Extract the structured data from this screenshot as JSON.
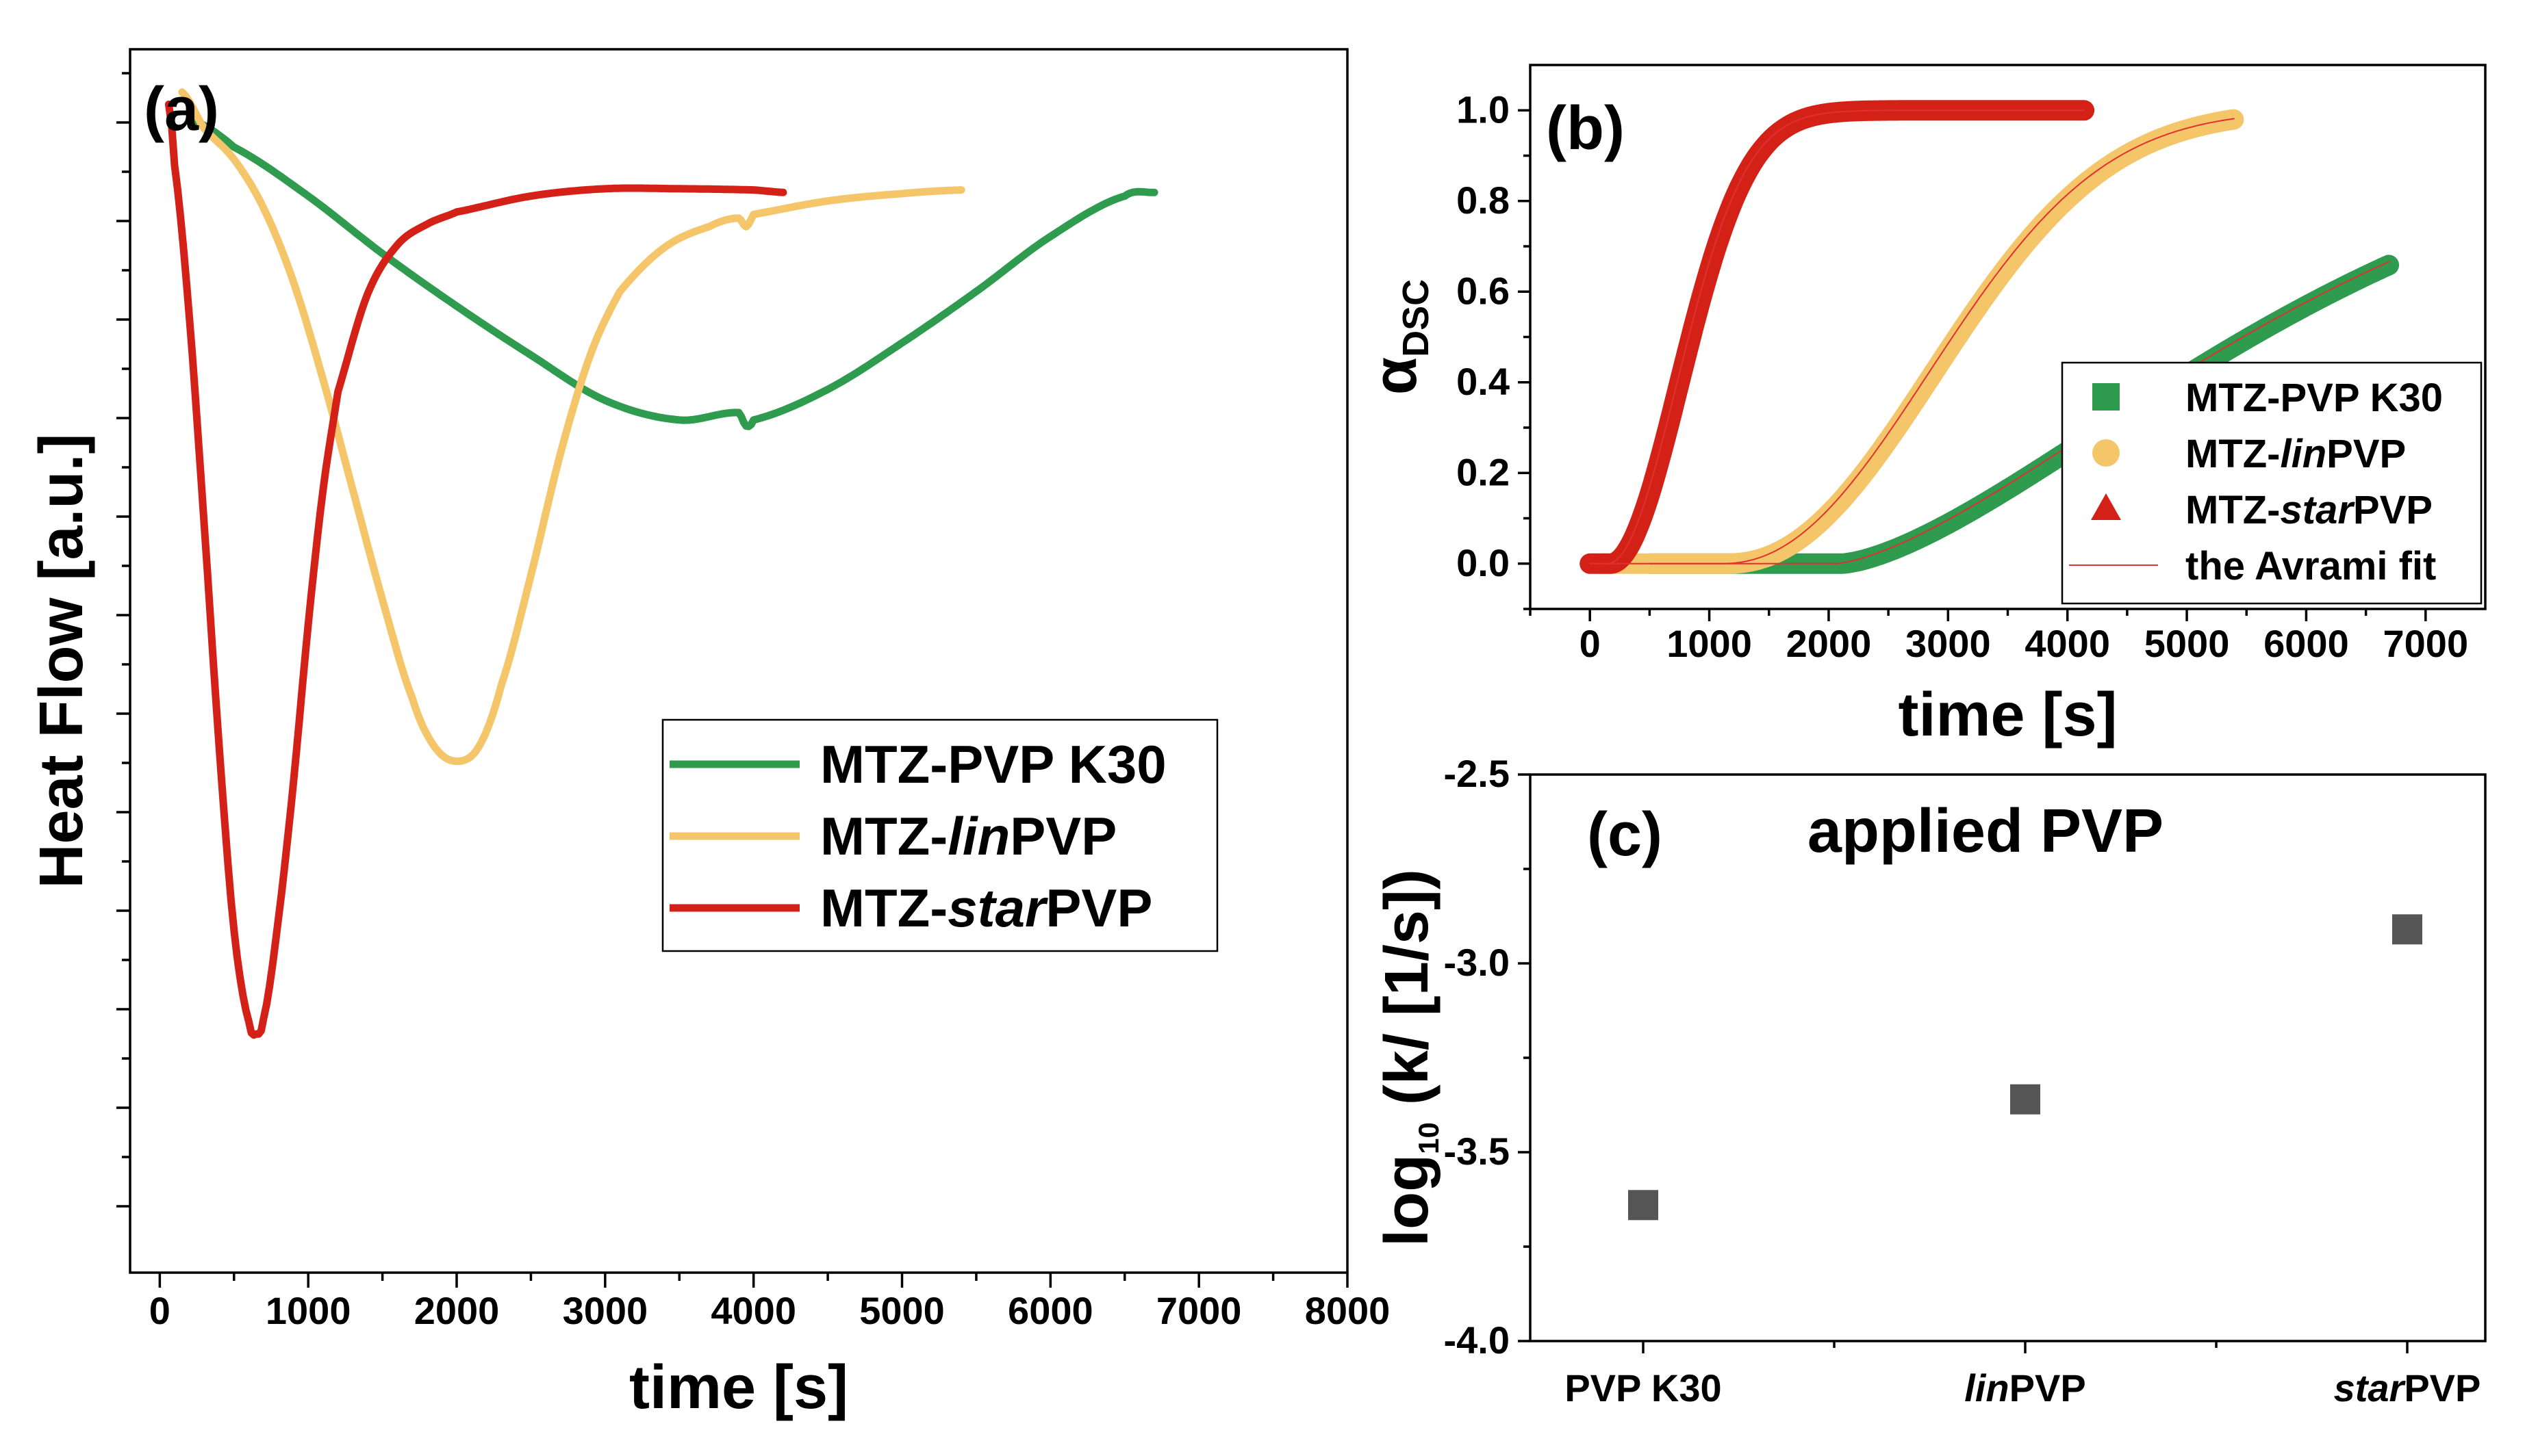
{
  "colors": {
    "green": "#2e9b4e",
    "yellow": "#f5c56a",
    "red": "#d42118",
    "marker_c": "#555555",
    "fit": "#e03030"
  },
  "chart_data": [
    {
      "panel": "(a)",
      "type": "line",
      "xlabel": "time [s]",
      "ylabel": "Heat Flow [a.u.]",
      "xlim": [
        -200,
        8000
      ],
      "ylim": [
        0,
        1
      ],
      "xticks": [
        0,
        1000,
        2000,
        3000,
        4000,
        5000,
        6000,
        7000,
        8000
      ],
      "x_tick_labels": [
        "0",
        "1000",
        "2000",
        "3000",
        "4000",
        "5000",
        "6000",
        "7000",
        "8000"
      ],
      "y_tick_labels_shown": false,
      "legend_position": "center-right",
      "series": [
        {
          "name": "MTZ-PVP K30",
          "name_parts": [
            "MTZ-PVP K30",
            ""
          ],
          "color": "#2e9b4e",
          "points": [
            [
              200,
              0.943
            ],
            [
              500,
              0.92
            ],
            [
              1000,
              0.88
            ],
            [
              1500,
              0.833
            ],
            [
              2000,
              0.79
            ],
            [
              2500,
              0.75
            ],
            [
              3000,
              0.713
            ],
            [
              3500,
              0.697
            ],
            [
              3900,
              0.703
            ],
            [
              3950,
              0.692
            ],
            [
              4000,
              0.697
            ],
            [
              4500,
              0.722
            ],
            [
              5000,
              0.76
            ],
            [
              5500,
              0.802
            ],
            [
              6000,
              0.847
            ],
            [
              6500,
              0.88
            ],
            [
              6700,
              0.883
            ]
          ]
        },
        {
          "name": "MTZ-linPVP",
          "name_parts": [
            "MTZ-",
            "lin",
            "PVP"
          ],
          "color": "#f5c56a",
          "points": [
            [
              150,
              0.965
            ],
            [
              300,
              0.935
            ],
            [
              500,
              0.91
            ],
            [
              700,
              0.87
            ],
            [
              900,
              0.81
            ],
            [
              1100,
              0.73
            ],
            [
              1300,
              0.64
            ],
            [
              1500,
              0.55
            ],
            [
              1700,
              0.47
            ],
            [
              1850,
              0.43
            ],
            [
              2000,
              0.418
            ],
            [
              2150,
              0.43
            ],
            [
              2300,
              0.48
            ],
            [
              2500,
              0.57
            ],
            [
              2700,
              0.67
            ],
            [
              2900,
              0.75
            ],
            [
              3100,
              0.802
            ],
            [
              3400,
              0.838
            ],
            [
              3700,
              0.855
            ],
            [
              3900,
              0.862
            ],
            [
              3950,
              0.855
            ],
            [
              4000,
              0.865
            ],
            [
              4500,
              0.876
            ],
            [
              5000,
              0.882
            ],
            [
              5400,
              0.885
            ]
          ]
        },
        {
          "name": "MTZ-starPVP",
          "name_parts": [
            "MTZ-",
            "star",
            "PVP"
          ],
          "color": "#d42118",
          "points": [
            [
              60,
              0.955
            ],
            [
              100,
              0.905
            ],
            [
              200,
              0.78
            ],
            [
              300,
              0.61
            ],
            [
              400,
              0.43
            ],
            [
              500,
              0.28
            ],
            [
              600,
              0.205
            ],
            [
              650,
              0.195
            ],
            [
              700,
              0.208
            ],
            [
              800,
              0.29
            ],
            [
              900,
              0.4
            ],
            [
              1000,
              0.53
            ],
            [
              1100,
              0.64
            ],
            [
              1200,
              0.72
            ],
            [
              1400,
              0.8
            ],
            [
              1600,
              0.84
            ],
            [
              1800,
              0.857
            ],
            [
              2000,
              0.867
            ],
            [
              2500,
              0.88
            ],
            [
              3000,
              0.886
            ],
            [
              3500,
              0.886
            ],
            [
              4000,
              0.885
            ],
            [
              4200,
              0.883
            ]
          ]
        }
      ]
    },
    {
      "panel": "(b)",
      "type": "scatter",
      "xlabel": "time [s]",
      "ylabel": "α",
      "ylabel_sub": "DSC",
      "xlim": [
        -500,
        7500
      ],
      "ylim": [
        -0.1,
        1.1
      ],
      "xticks": [
        0,
        1000,
        2000,
        3000,
        4000,
        5000,
        6000,
        7000
      ],
      "x_tick_labels": [
        "0",
        "1000",
        "2000",
        "3000",
        "4000",
        "5000",
        "6000",
        "7000"
      ],
      "yticks": [
        0.0,
        0.2,
        0.4,
        0.6,
        0.8,
        1.0
      ],
      "y_tick_labels": [
        "0.0",
        "0.2",
        "0.4",
        "0.6",
        "0.8",
        "1.0"
      ],
      "legend_position": "bottom-right",
      "series": [
        {
          "name": "MTZ-PVP K30",
          "name_parts": [
            "MTZ-PVP K30",
            ""
          ],
          "marker": "square",
          "color": "#2e9b4e",
          "onset_s": 2050,
          "avrami_k": 0.000229,
          "avrami_n": 1.5,
          "x_start": 500,
          "x_end": 6700
        },
        {
          "name": "MTZ-linPVP",
          "name_parts": [
            "MTZ-",
            "lin",
            "PVP"
          ],
          "marker": "circle",
          "color": "#f5c56a",
          "onset_s": 1100,
          "avrami_k": 0.000437,
          "avrami_n": 2.2,
          "x_start": 100,
          "x_end": 5400
        },
        {
          "name": "MTZ-starPVP",
          "name_parts": [
            "MTZ-",
            "star",
            "PVP"
          ],
          "marker": "triangle",
          "color": "#d42118",
          "onset_s": 150,
          "avrami_k": 0.00123,
          "avrami_n": 2.0,
          "x_start": 0,
          "x_end": 4150
        }
      ],
      "fit_legend": "the Avrami fit"
    },
    {
      "panel": "(c)",
      "type": "scatter",
      "title": "applied PVP",
      "ylabel": "log",
      "ylabel_sub": "10",
      "ylabel_rest": " (k/ [1/s])",
      "ylim": [
        -4.0,
        -2.5
      ],
      "yticks": [
        -4.0,
        -3.5,
        -3.0,
        -2.5
      ],
      "y_tick_labels": [
        "-4.0",
        "-3.5",
        "-3.0",
        "-2.5"
      ],
      "categories": [
        {
          "label_parts": [
            "PVP K30",
            ""
          ],
          "value": -3.64
        },
        {
          "label_parts": [
            "lin",
            "PVP"
          ],
          "value": -3.36
        },
        {
          "label_parts": [
            "star",
            "PVP"
          ],
          "value": -2.91
        }
      ],
      "marker": "square",
      "color": "#555555"
    }
  ]
}
